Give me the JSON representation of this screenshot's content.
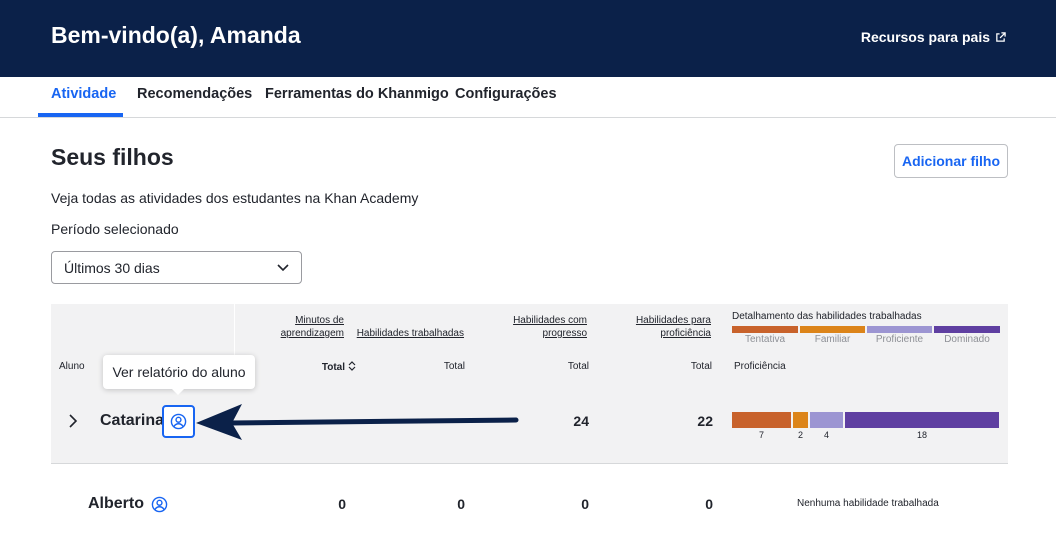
{
  "header": {
    "welcome": "Bem-vindo(a), Amanda",
    "resources_link": "Recursos para pais",
    "resources_icon": "external-link-icon"
  },
  "tabs": [
    {
      "label": "Atividade",
      "active": true
    },
    {
      "label": "Recomendações",
      "active": false
    },
    {
      "label": "Ferramentas do Khanmigo",
      "active": false
    },
    {
      "label": "Configurações",
      "active": false
    }
  ],
  "main": {
    "title": "Seus filhos",
    "add_button": "Adicionar filho",
    "description": "Veja todas as atividades dos estudantes na Khan Academy",
    "period_label": "Período selecionado",
    "period_value": "Últimos 30 dias"
  },
  "table": {
    "headers": {
      "minutes_line1": "Minutos de",
      "minutes_line2": "aprendizagem",
      "skills_worked": "Habilidades trabalhadas",
      "skills_progress_line1": "Habilidades com",
      "skills_progress_line2": "progresso",
      "skills_prof_line1": "Habilidades para",
      "skills_prof_line2": "proficiência",
      "breakdown": "Detalhamento das habilidades trabalhadas",
      "student": "Aluno",
      "total": "Total",
      "proficiency": "Proficiência"
    },
    "legend": [
      {
        "label": "Tentativa",
        "color": "#c8622b"
      },
      {
        "label": "Familiar",
        "color": "#dc8419"
      },
      {
        "label": "Proficiente",
        "color": "#9c95d2"
      },
      {
        "label": "Dominado",
        "color": "#5f3fa1"
      }
    ],
    "rows": [
      {
        "name": "Catarina",
        "skills_progress": "24",
        "skills_prof": "22",
        "breakdown": [
          7,
          2,
          4,
          18
        ]
      },
      {
        "name": "Alberto",
        "minutes": "0",
        "skills_worked": "0",
        "skills_progress": "0",
        "skills_prof": "0",
        "no_skills": "Nenhuma habilidade trabalhada"
      }
    ]
  },
  "tooltip": "Ver relatório do aluno",
  "colors": {
    "header_bg": "#0b2149",
    "accent": "#1865f2",
    "arrow": "#0b2149"
  }
}
